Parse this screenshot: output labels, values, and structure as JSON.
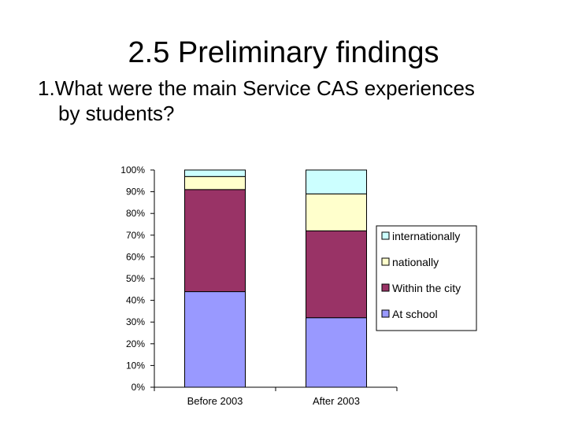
{
  "slide": {
    "title": "2.5 Preliminary findings",
    "question_line1": "1.What  were the main Service  CAS experiences",
    "question_line2": "by students?"
  },
  "chart_data": {
    "type": "bar",
    "stacked": true,
    "categories": [
      "Before 2003",
      "After 2003"
    ],
    "series": [
      {
        "name": "At school",
        "values": [
          44,
          32
        ],
        "color": "#9999ff"
      },
      {
        "name": "Within the city",
        "values": [
          47,
          40
        ],
        "color": "#993366"
      },
      {
        "name": "nationally",
        "values": [
          6,
          17
        ],
        "color": "#ffffcc"
      },
      {
        "name": "internationally",
        "values": [
          3,
          11
        ],
        "color": "#ccffff"
      }
    ],
    "ylim": [
      0,
      100
    ],
    "yticks": [
      "0%",
      "10%",
      "20%",
      "30%",
      "40%",
      "50%",
      "60%",
      "70%",
      "80%",
      "90%",
      "100%"
    ],
    "legend_position": "right",
    "legend_order": [
      "internationally",
      "nationally",
      "Within the city",
      "At school"
    ],
    "grid": false
  }
}
